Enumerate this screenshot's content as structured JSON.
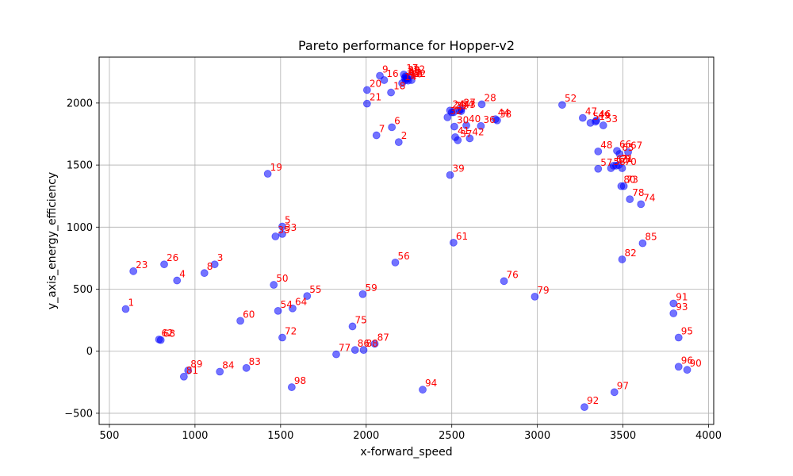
{
  "chart_data": {
    "type": "scatter",
    "title": "Pareto performance for Hopper-v2",
    "xlabel": "x-forward_speed",
    "ylabel": "y_axis_energy_efficiency",
    "xlim": [
      440,
      4030
    ],
    "ylim": [
      -590,
      2370
    ],
    "xticks": [
      500,
      1000,
      1500,
      2000,
      2500,
      3000,
      3500,
      4000
    ],
    "yticks": [
      -500,
      0,
      500,
      1000,
      1500,
      2000
    ],
    "grid": true,
    "point_color": "#0000ff",
    "point_alpha": 0.55,
    "label_color": "#ff0000",
    "points": [
      {
        "label": "1",
        "x": 595,
        "y": 340
      },
      {
        "label": "2",
        "x": 2190,
        "y": 1685
      },
      {
        "label": "3",
        "x": 1115,
        "y": 700
      },
      {
        "label": "4",
        "x": 895,
        "y": 570
      },
      {
        "label": "5",
        "x": 1510,
        "y": 1005
      },
      {
        "label": "6",
        "x": 2150,
        "y": 1805
      },
      {
        "label": "7",
        "x": 2060,
        "y": 1740
      },
      {
        "label": "8",
        "x": 1055,
        "y": 630
      },
      {
        "label": "9",
        "x": 2080,
        "y": 2220
      },
      {
        "label": "10",
        "x": 2245,
        "y": 2180
      },
      {
        "label": "11",
        "x": 2225,
        "y": 2200
      },
      {
        "label": "12",
        "x": 2260,
        "y": 2220
      },
      {
        "label": "13",
        "x": 2240,
        "y": 2195
      },
      {
        "label": "14",
        "x": 2210,
        "y": 2160
      },
      {
        "label": "15",
        "x": 2235,
        "y": 2205
      },
      {
        "label": "16",
        "x": 2105,
        "y": 2185
      },
      {
        "label": "17",
        "x": 2220,
        "y": 2230
      },
      {
        "label": "18",
        "x": 2145,
        "y": 2085
      },
      {
        "label": "19",
        "x": 1425,
        "y": 1430
      },
      {
        "label": "20",
        "x": 2005,
        "y": 2105
      },
      {
        "label": "21",
        "x": 2005,
        "y": 1995
      },
      {
        "label": "22",
        "x": 2265,
        "y": 2185
      },
      {
        "label": "23",
        "x": 640,
        "y": 645
      },
      {
        "label": "24",
        "x": 2490,
        "y": 1940
      },
      {
        "label": "25",
        "x": 2500,
        "y": 1925
      },
      {
        "label": "26",
        "x": 820,
        "y": 700
      },
      {
        "label": "27",
        "x": 2555,
        "y": 1950
      },
      {
        "label": "28",
        "x": 2675,
        "y": 1990
      },
      {
        "label": "29",
        "x": 2230,
        "y": 2215
      },
      {
        "label": "30",
        "x": 2515,
        "y": 1810
      },
      {
        "label": "31",
        "x": 2510,
        "y": 1925
      },
      {
        "label": "32",
        "x": 2475,
        "y": 1885
      },
      {
        "label": "33",
        "x": 1510,
        "y": 945
      },
      {
        "label": "34",
        "x": 2545,
        "y": 1940
      },
      {
        "label": "35",
        "x": 1470,
        "y": 925
      },
      {
        "label": "36",
        "x": 2670,
        "y": 1815
      },
      {
        "label": "37",
        "x": 2535,
        "y": 1700
      },
      {
        "label": "38",
        "x": 2765,
        "y": 1860
      },
      {
        "label": "39",
        "x": 2490,
        "y": 1420
      },
      {
        "label": "40",
        "x": 2585,
        "y": 1820
      },
      {
        "label": "41",
        "x": 2520,
        "y": 1725
      },
      {
        "label": "42",
        "x": 2605,
        "y": 1715
      },
      {
        "label": "43",
        "x": 2555,
        "y": 1935
      },
      {
        "label": "44",
        "x": 2755,
        "y": 1870
      },
      {
        "label": "45",
        "x": 2230,
        "y": 2185
      },
      {
        "label": "46",
        "x": 3345,
        "y": 1860
      },
      {
        "label": "47",
        "x": 3265,
        "y": 1880
      },
      {
        "label": "48",
        "x": 3355,
        "y": 1610
      },
      {
        "label": "49",
        "x": 3340,
        "y": 1850
      },
      {
        "label": "50",
        "x": 1460,
        "y": 535
      },
      {
        "label": "51",
        "x": 3310,
        "y": 1840
      },
      {
        "label": "52",
        "x": 3145,
        "y": 1985
      },
      {
        "label": "53",
        "x": 3385,
        "y": 1820
      },
      {
        "label": "54",
        "x": 1485,
        "y": 325
      },
      {
        "label": "55",
        "x": 1655,
        "y": 445
      },
      {
        "label": "56",
        "x": 2170,
        "y": 715
      },
      {
        "label": "57",
        "x": 3355,
        "y": 1470
      },
      {
        "label": "58",
        "x": 3430,
        "y": 1475
      },
      {
        "label": "59",
        "x": 1980,
        "y": 460
      },
      {
        "label": "60",
        "x": 1265,
        "y": 245
      },
      {
        "label": "61",
        "x": 2510,
        "y": 875
      },
      {
        "label": "62",
        "x": 790,
        "y": 95
      },
      {
        "label": "63",
        "x": 3445,
        "y": 1495
      },
      {
        "label": "64",
        "x": 1570,
        "y": 345
      },
      {
        "label": "65",
        "x": 3480,
        "y": 1590
      },
      {
        "label": "66",
        "x": 3465,
        "y": 1615
      },
      {
        "label": "67",
        "x": 3530,
        "y": 1605
      },
      {
        "label": "68",
        "x": 800,
        "y": 90
      },
      {
        "label": "69",
        "x": 3460,
        "y": 1495
      },
      {
        "label": "70",
        "x": 3495,
        "y": 1475
      },
      {
        "label": "71",
        "x": 3475,
        "y": 1500
      },
      {
        "label": "72",
        "x": 1510,
        "y": 110
      },
      {
        "label": "73",
        "x": 3505,
        "y": 1330
      },
      {
        "label": "74",
        "x": 3605,
        "y": 1185
      },
      {
        "label": "75",
        "x": 1920,
        "y": 200
      },
      {
        "label": "76",
        "x": 2805,
        "y": 565
      },
      {
        "label": "77",
        "x": 1825,
        "y": -25
      },
      {
        "label": "78",
        "x": 3540,
        "y": 1225
      },
      {
        "label": "79",
        "x": 2985,
        "y": 440
      },
      {
        "label": "80",
        "x": 3490,
        "y": 1330
      },
      {
        "label": "81",
        "x": 935,
        "y": -205
      },
      {
        "label": "82",
        "x": 3495,
        "y": 740
      },
      {
        "label": "83",
        "x": 1300,
        "y": -135
      },
      {
        "label": "84",
        "x": 1145,
        "y": -165
      },
      {
        "label": "85",
        "x": 3615,
        "y": 870
      },
      {
        "label": "86",
        "x": 1935,
        "y": 10
      },
      {
        "label": "87",
        "x": 2050,
        "y": 60
      },
      {
        "label": "88",
        "x": 1985,
        "y": 10
      },
      {
        "label": "89",
        "x": 960,
        "y": -155
      },
      {
        "label": "90",
        "x": 3875,
        "y": -150
      },
      {
        "label": "91",
        "x": 3795,
        "y": 385
      },
      {
        "label": "92",
        "x": 3275,
        "y": -450
      },
      {
        "label": "93",
        "x": 3795,
        "y": 305
      },
      {
        "label": "94",
        "x": 2330,
        "y": -310
      },
      {
        "label": "95",
        "x": 3825,
        "y": 110
      },
      {
        "label": "96",
        "x": 3825,
        "y": -125
      },
      {
        "label": "97",
        "x": 3450,
        "y": -330
      },
      {
        "label": "98",
        "x": 1565,
        "y": -290
      }
    ]
  }
}
